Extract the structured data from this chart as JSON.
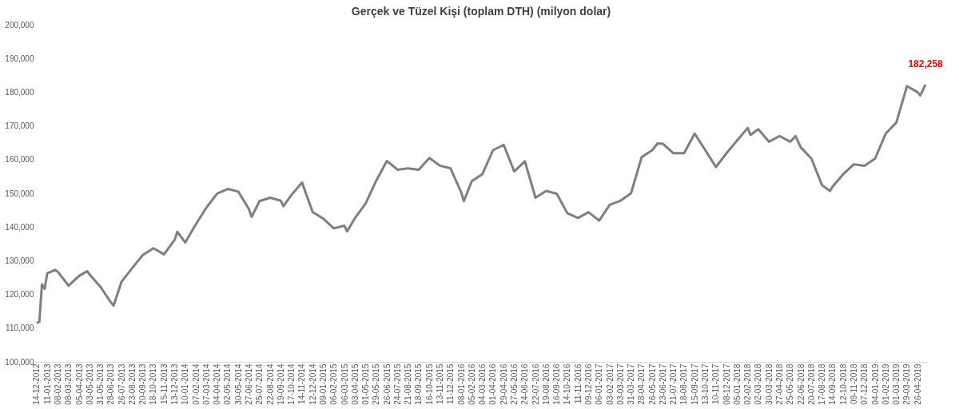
{
  "chart_data": {
    "type": "line",
    "title": "Gerçek ve Tüzel Kişi (toplam DTH) (milyon dolar)",
    "x": [
      "2012-12-14",
      "2012-12-21",
      "2012-12-28",
      "2013-01-04",
      "2013-01-11",
      "2013-02-01",
      "2013-02-08",
      "2013-03-08",
      "2013-04-05",
      "2013-04-26",
      "2013-05-03",
      "2013-05-31",
      "2013-06-28",
      "2013-07-05",
      "2013-07-26",
      "2013-08-23",
      "2013-09-20",
      "2013-10-18",
      "2013-11-15",
      "2013-12-13",
      "2013-12-20",
      "2014-01-10",
      "2014-02-07",
      "2014-03-07",
      "2014-04-04",
      "2014-05-02",
      "2014-05-30",
      "2014-06-27",
      "2014-07-04",
      "2014-07-25",
      "2014-08-22",
      "2014-09-19",
      "2014-09-26",
      "2014-10-17",
      "2014-11-14",
      "2014-12-12",
      "2015-01-09",
      "2015-02-06",
      "2015-03-06",
      "2015-03-13",
      "2015-04-03",
      "2015-05-01",
      "2015-05-29",
      "2015-06-26",
      "2015-07-24",
      "2015-08-21",
      "2015-09-18",
      "2015-10-16",
      "2015-11-13",
      "2015-12-11",
      "2016-01-08",
      "2016-01-15",
      "2016-02-05",
      "2016-03-04",
      "2016-04-01",
      "2016-04-29",
      "2016-05-27",
      "2016-06-24",
      "2016-07-22",
      "2016-08-19",
      "2016-09-16",
      "2016-10-14",
      "2016-11-11",
      "2016-12-09",
      "2017-01-06",
      "2017-02-03",
      "2017-03-03",
      "2017-03-31",
      "2017-04-28",
      "2017-05-26",
      "2017-06-09",
      "2017-06-23",
      "2017-07-21",
      "2017-08-18",
      "2017-09-15",
      "2017-10-13",
      "2017-11-10",
      "2017-12-08",
      "2018-01-05",
      "2018-02-02",
      "2018-02-09",
      "2018-03-02",
      "2018-03-30",
      "2018-04-27",
      "2018-05-25",
      "2018-06-08",
      "2018-06-22",
      "2018-07-20",
      "2018-08-17",
      "2018-09-07",
      "2018-09-14",
      "2018-10-12",
      "2018-11-09",
      "2018-12-07",
      "2019-01-04",
      "2019-02-01",
      "2019-03-01",
      "2019-03-29",
      "2019-04-26",
      "2019-05-03",
      "2019-05-17"
    ],
    "series": [
      {
        "color": "#7f7f7f",
        "values": [
          111500,
          111900,
          123000,
          121700,
          126300,
          127300,
          126700,
          122600,
          125500,
          126900,
          125900,
          122300,
          117600,
          116700,
          123800,
          127800,
          131700,
          133700,
          131900,
          136200,
          138600,
          135400,
          140800,
          145800,
          149900,
          151300,
          150500,
          145300,
          143000,
          147700,
          148700,
          147800,
          146200,
          149500,
          153200,
          144500,
          142500,
          139600,
          140400,
          138700,
          142700,
          147000,
          153800,
          159600,
          157000,
          157400,
          157000,
          160500,
          158200,
          157400,
          150300,
          147700,
          153600,
          155700,
          162800,
          164400,
          156500,
          159500,
          148700,
          150700,
          149900,
          144100,
          142700,
          144400,
          141900,
          146600,
          147800,
          150000,
          160700,
          162800,
          164800,
          164700,
          161900,
          161900,
          167700,
          162800,
          157800,
          161900,
          165700,
          169400,
          167300,
          169000,
          165300,
          167000,
          165300,
          167000,
          163600,
          160300,
          152400,
          150700,
          152000,
          155700,
          158600,
          158200,
          160300,
          167700,
          171000,
          181800,
          180000,
          179000,
          182258
        ]
      }
    ],
    "annotations": [
      {
        "text": "182,258",
        "x": "2019-05-17",
        "y": 182258
      }
    ],
    "ylim": [
      100000,
      200000
    ],
    "yticks": [
      {
        "value": 100000,
        "label": "100,000"
      },
      {
        "value": 110000,
        "label": "110,000"
      },
      {
        "value": 120000,
        "label": "120,000"
      },
      {
        "value": 130000,
        "label": "130,000"
      },
      {
        "value": 140000,
        "label": "140,000"
      },
      {
        "value": 150000,
        "label": "150,000"
      },
      {
        "value": 160000,
        "label": "160,000"
      },
      {
        "value": 170000,
        "label": "170,000"
      },
      {
        "value": 180000,
        "label": "180,000"
      },
      {
        "value": 190000,
        "label": "190,000"
      },
      {
        "value": 200000,
        "label": "200,000"
      }
    ],
    "xlim": [
      "2012-12-10",
      "2019-05-21"
    ],
    "xticks": [
      {
        "value": "2012-12-14",
        "label": "14-12-2012"
      },
      {
        "value": "2013-01-11",
        "label": "11-01-2013"
      },
      {
        "value": "2013-02-08",
        "label": "08-02-2013"
      },
      {
        "value": "2013-03-08",
        "label": "08-03-2013"
      },
      {
        "value": "2013-04-05",
        "label": "05-04-2013"
      },
      {
        "value": "2013-05-03",
        "label": "03-05-2013"
      },
      {
        "value": "2013-05-31",
        "label": "31-05-2013"
      },
      {
        "value": "2013-06-28",
        "label": "28-06-2013"
      },
      {
        "value": "2013-07-26",
        "label": "26-07-2013"
      },
      {
        "value": "2013-08-23",
        "label": "23-08-2013"
      },
      {
        "value": "2013-09-20",
        "label": "20-09-2013"
      },
      {
        "value": "2013-10-18",
        "label": "18-10-2013"
      },
      {
        "value": "2013-11-15",
        "label": "15-11-2013"
      },
      {
        "value": "2013-12-13",
        "label": "13-12-2013"
      },
      {
        "value": "2014-01-10",
        "label": "10-01-2014"
      },
      {
        "value": "2014-02-07",
        "label": "07-02-2014"
      },
      {
        "value": "2014-03-07",
        "label": "07-03-2014"
      },
      {
        "value": "2014-04-04",
        "label": "04-04-2014"
      },
      {
        "value": "2014-05-02",
        "label": "02-05-2014"
      },
      {
        "value": "2014-05-30",
        "label": "30-05-2014"
      },
      {
        "value": "2014-06-27",
        "label": "27-06-2014"
      },
      {
        "value": "2014-07-25",
        "label": "25-07-2014"
      },
      {
        "value": "2014-08-22",
        "label": "22-08-2014"
      },
      {
        "value": "2014-09-19",
        "label": "19-09-2014"
      },
      {
        "value": "2014-10-17",
        "label": "17-10-2014"
      },
      {
        "value": "2014-11-14",
        "label": "14-11-2014"
      },
      {
        "value": "2014-12-12",
        "label": "12-12-2014"
      },
      {
        "value": "2015-01-09",
        "label": "09-01-2015"
      },
      {
        "value": "2015-02-06",
        "label": "06-02-2015"
      },
      {
        "value": "2015-03-06",
        "label": "06-03-2015"
      },
      {
        "value": "2015-04-03",
        "label": "03-04-2015"
      },
      {
        "value": "2015-05-01",
        "label": "01-05-2015"
      },
      {
        "value": "2015-05-29",
        "label": "29-05-2015"
      },
      {
        "value": "2015-06-26",
        "label": "26-06-2015"
      },
      {
        "value": "2015-07-24",
        "label": "24-07-2015"
      },
      {
        "value": "2015-08-21",
        "label": "21-08-2015"
      },
      {
        "value": "2015-09-18",
        "label": "18-09-2015"
      },
      {
        "value": "2015-10-16",
        "label": "16-10-2015"
      },
      {
        "value": "2015-11-13",
        "label": "13-11-2015"
      },
      {
        "value": "2015-12-11",
        "label": "11-12-2015"
      },
      {
        "value": "2016-01-08",
        "label": "08-01-2016"
      },
      {
        "value": "2016-02-05",
        "label": "05-02-2016"
      },
      {
        "value": "2016-03-04",
        "label": "04-03-2016"
      },
      {
        "value": "2016-04-01",
        "label": "01-04-2016"
      },
      {
        "value": "2016-04-29",
        "label": "29-04-2016"
      },
      {
        "value": "2016-05-27",
        "label": "27-05-2016"
      },
      {
        "value": "2016-06-24",
        "label": "24-06-2016"
      },
      {
        "value": "2016-07-22",
        "label": "22-07-2016"
      },
      {
        "value": "2016-08-19",
        "label": "19-08-2016"
      },
      {
        "value": "2016-09-16",
        "label": "16-09-2016"
      },
      {
        "value": "2016-10-14",
        "label": "14-10-2016"
      },
      {
        "value": "2016-11-11",
        "label": "11-11-2016"
      },
      {
        "value": "2016-12-09",
        "label": "09-12-2016"
      },
      {
        "value": "2017-01-06",
        "label": "06-01-2017"
      },
      {
        "value": "2017-02-03",
        "label": "03-02-2017"
      },
      {
        "value": "2017-03-03",
        "label": "03-03-2017"
      },
      {
        "value": "2017-03-31",
        "label": "31-03-2017"
      },
      {
        "value": "2017-04-28",
        "label": "28-04-2017"
      },
      {
        "value": "2017-05-26",
        "label": "26-05-2017"
      },
      {
        "value": "2017-06-23",
        "label": "23-06-2017"
      },
      {
        "value": "2017-07-21",
        "label": "21-07-2017"
      },
      {
        "value": "2017-08-18",
        "label": "18-08-2017"
      },
      {
        "value": "2017-09-15",
        "label": "15-09-2017"
      },
      {
        "value": "2017-10-13",
        "label": "13-10-2017"
      },
      {
        "value": "2017-11-10",
        "label": "10-11-2017"
      },
      {
        "value": "2017-12-08",
        "label": "08-12-2017"
      },
      {
        "value": "2018-01-05",
        "label": "05-01-2018"
      },
      {
        "value": "2018-02-02",
        "label": "02-02-2018"
      },
      {
        "value": "2018-03-02",
        "label": "02-03-2018"
      },
      {
        "value": "2018-03-30",
        "label": "30-03-2018"
      },
      {
        "value": "2018-04-27",
        "label": "27-04-2018"
      },
      {
        "value": "2018-05-25",
        "label": "25-05-2018"
      },
      {
        "value": "2018-06-22",
        "label": "22-06-2018"
      },
      {
        "value": "2018-07-20",
        "label": "20-07-2018"
      },
      {
        "value": "2018-08-17",
        "label": "17-08-2018"
      },
      {
        "value": "2018-09-14",
        "label": "14-09-2018"
      },
      {
        "value": "2018-10-12",
        "label": "12-10-2018"
      },
      {
        "value": "2018-11-09",
        "label": "09-11-2018"
      },
      {
        "value": "2018-12-07",
        "label": "07-12-2018"
      },
      {
        "value": "2019-01-04",
        "label": "04-01-2019"
      },
      {
        "value": "2019-02-01",
        "label": "01-02-2019"
      },
      {
        "value": "2019-03-01",
        "label": "01-03-2019"
      },
      {
        "value": "2019-03-29",
        "label": "29-03-2019"
      },
      {
        "value": "2019-04-26",
        "label": "26-04-2019"
      }
    ],
    "grid": false,
    "legend": false,
    "marker": "none",
    "line_style": "solid"
  }
}
